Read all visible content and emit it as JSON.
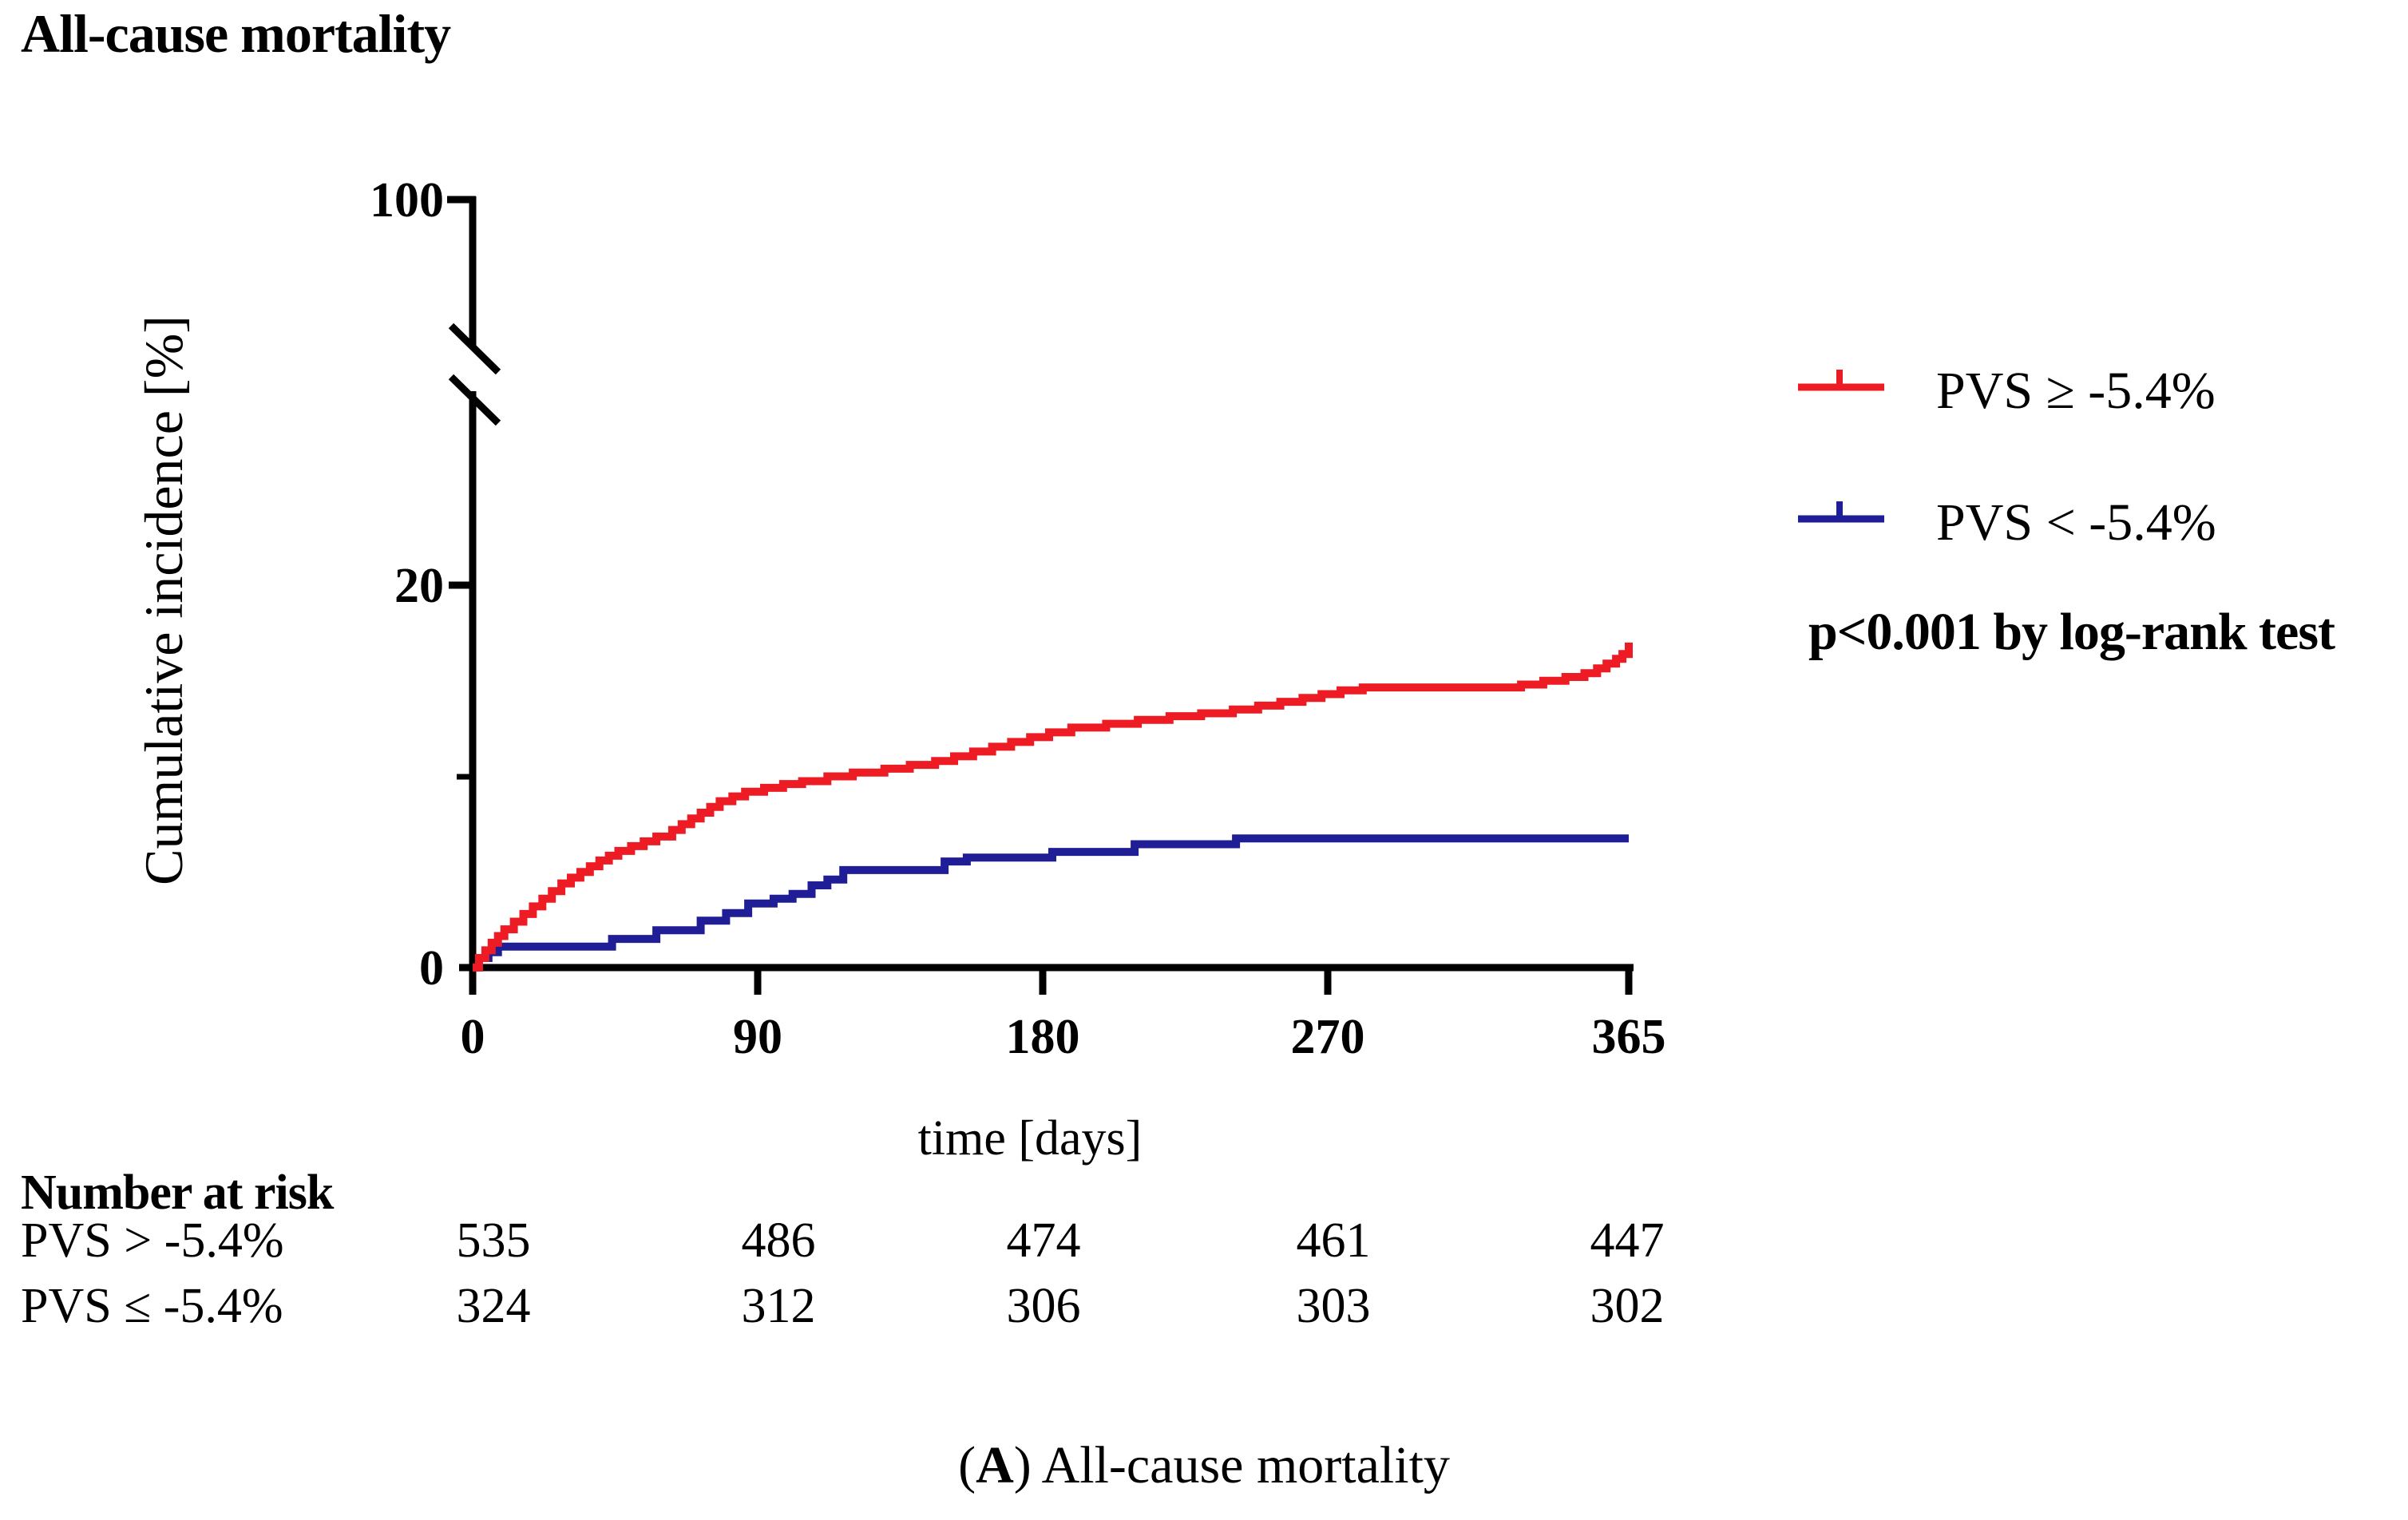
{
  "title": "All-cause mortality",
  "axes": {
    "x_label": "time [days]",
    "y_label": "Cumulative incidence [%]",
    "x_tick_labels": [
      "0",
      "90",
      "180",
      "270",
      "365"
    ],
    "y_tick_labels": [
      "100",
      "20",
      "0"
    ]
  },
  "legend": {
    "items": [
      {
        "label": "PVS ≥ -5.4%",
        "color": "#ed1c24"
      },
      {
        "label": "PVS < -5.4%",
        "color": "#201e96"
      }
    ],
    "note": "p<0.001 by log-rank test"
  },
  "risk_table": {
    "header": "Number at risk",
    "rows": [
      {
        "label": "PVS > -5.4%",
        "values": [
          "535",
          "486",
          "474",
          "461",
          "447"
        ]
      },
      {
        "label": "PVS ≤ -5.4%",
        "values": [
          "324",
          "312",
          "306",
          "303",
          "302"
        ]
      }
    ]
  },
  "caption": {
    "open_paren": "(",
    "letter": "A",
    "close_text": ") All-cause mortality"
  },
  "chart_data": {
    "type": "line",
    "subtype": "kaplan-meier-step",
    "title": "All-cause mortality",
    "xlabel": "time [days]",
    "ylabel": "Cumulative incidence [%]",
    "xlim": [
      0,
      365
    ],
    "x_ticks": [
      0,
      90,
      180,
      270,
      365
    ],
    "y_ticks_labeled": [
      0,
      20,
      100
    ],
    "y_minor_ticks": [
      10
    ],
    "axis_break_on_y": true,
    "grid": false,
    "legend_position": "right-outside",
    "annotation": "p<0.001 by log-rank test",
    "series": [
      {
        "name": "PVS ≥ -5.4%",
        "color": "#ed1c24",
        "step": true,
        "points": [
          [
            0,
            0
          ],
          [
            2,
            0.5
          ],
          [
            4,
            0.9
          ],
          [
            6,
            1.3
          ],
          [
            8,
            1.65
          ],
          [
            10,
            2.0
          ],
          [
            13,
            2.4
          ],
          [
            16,
            2.8
          ],
          [
            19,
            3.2
          ],
          [
            22,
            3.6
          ],
          [
            25,
            4.0
          ],
          [
            28,
            4.4
          ],
          [
            31,
            4.7
          ],
          [
            34,
            5.0
          ],
          [
            37,
            5.3
          ],
          [
            40,
            5.6
          ],
          [
            43,
            5.85
          ],
          [
            46,
            6.1
          ],
          [
            50,
            6.35
          ],
          [
            54,
            6.6
          ],
          [
            58,
            6.85
          ],
          [
            63,
            7.2
          ],
          [
            66,
            7.5
          ],
          [
            69,
            7.8
          ],
          [
            72,
            8.1
          ],
          [
            75,
            8.4
          ],
          [
            78,
            8.7
          ],
          [
            82,
            8.95
          ],
          [
            86,
            9.2
          ],
          [
            92,
            9.4
          ],
          [
            98,
            9.6
          ],
          [
            104,
            9.75
          ],
          [
            112,
            10.0
          ],
          [
            120,
            10.2
          ],
          [
            130,
            10.4
          ],
          [
            138,
            10.6
          ],
          [
            146,
            10.8
          ],
          [
            152,
            11.05
          ],
          [
            158,
            11.3
          ],
          [
            164,
            11.55
          ],
          [
            170,
            11.8
          ],
          [
            176,
            12.05
          ],
          [
            182,
            12.3
          ],
          [
            189,
            12.55
          ],
          [
            200,
            12.75
          ],
          [
            210,
            12.95
          ],
          [
            220,
            13.15
          ],
          [
            230,
            13.3
          ],
          [
            240,
            13.5
          ],
          [
            248,
            13.7
          ],
          [
            255,
            13.9
          ],
          [
            262,
            14.1
          ],
          [
            268,
            14.3
          ],
          [
            274,
            14.5
          ],
          [
            281,
            14.65
          ],
          [
            331,
            14.8
          ],
          [
            338,
            15.0
          ],
          [
            345,
            15.2
          ],
          [
            351,
            15.4
          ],
          [
            355,
            15.65
          ],
          [
            358,
            15.9
          ],
          [
            361,
            16.15
          ],
          [
            363,
            16.4
          ],
          [
            365,
            17.0
          ]
        ]
      },
      {
        "name": "PVS < -5.4%",
        "color": "#201e96",
        "step": true,
        "points": [
          [
            0,
            0
          ],
          [
            2,
            0.5
          ],
          [
            5,
            0.8
          ],
          [
            8,
            1.1
          ],
          [
            44,
            1.5
          ],
          [
            58,
            1.95
          ],
          [
            72,
            2.45
          ],
          [
            80,
            2.85
          ],
          [
            87,
            3.35
          ],
          [
            95,
            3.6
          ],
          [
            101,
            3.85
          ],
          [
            107,
            4.3
          ],
          [
            112,
            4.6
          ],
          [
            117,
            5.1
          ],
          [
            149,
            5.55
          ],
          [
            156,
            5.75
          ],
          [
            183,
            6.05
          ],
          [
            209,
            6.45
          ],
          [
            241,
            6.75
          ],
          [
            365,
            6.75
          ]
        ]
      }
    ],
    "number_at_risk": {
      "times": [
        0,
        90,
        180,
        270,
        365
      ],
      "groups": [
        {
          "label": "PVS > -5.4%",
          "counts": [
            535,
            486,
            474,
            461,
            447
          ]
        },
        {
          "label": "PVS ≤ -5.4%",
          "counts": [
            324,
            312,
            306,
            303,
            302
          ]
        }
      ]
    }
  }
}
